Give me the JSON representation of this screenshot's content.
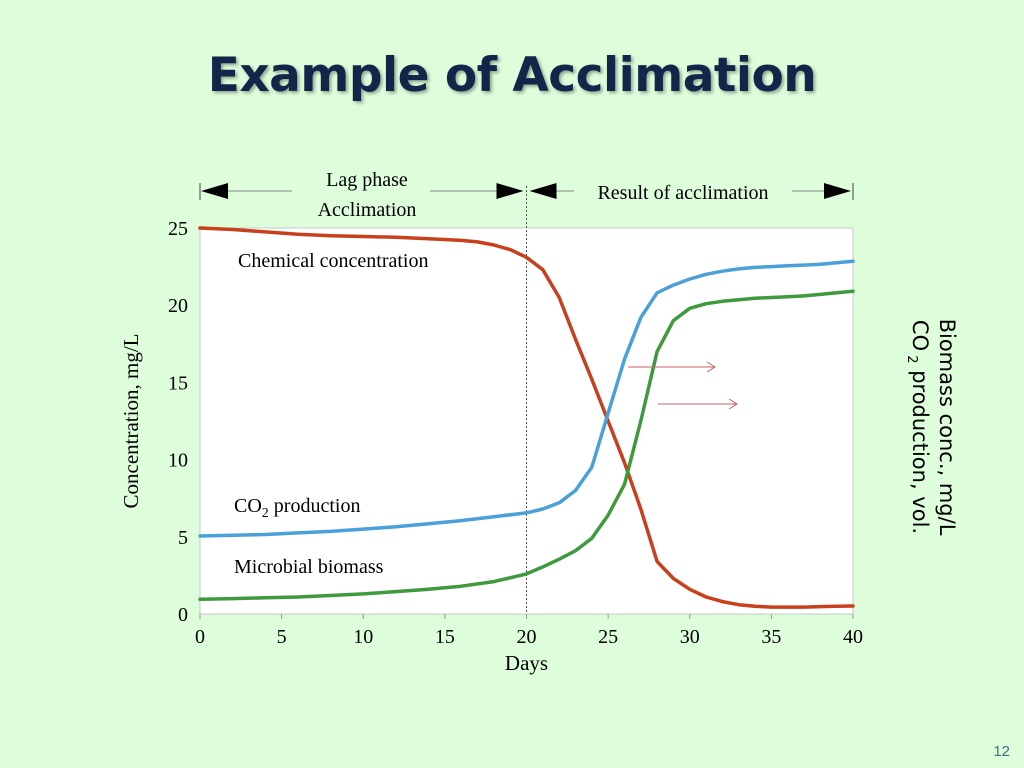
{
  "slide": {
    "title": "Example of Acclimation",
    "page_number": "12"
  },
  "colors": {
    "background": "#ddfddb",
    "title": "#14254a",
    "plot_area": "#ffffff",
    "chemical": "#c8401c",
    "co2": "#4aa0d8",
    "biomass": "#3e9a3c",
    "arrows": "#c8606a"
  },
  "chart_data": {
    "type": "line",
    "xlabel": "Days",
    "ylabel": "Concentration, mg/L",
    "y2label_line1": "Biomass conc., mg/L",
    "y2label_line2_pre": "CO",
    "y2label_line2_sub": "2",
    "y2label_line2_post": " production, vol.",
    "xlim": [
      0,
      40
    ],
    "ylim": [
      0,
      25
    ],
    "xticks": [
      0,
      5,
      10,
      15,
      20,
      25,
      30,
      35,
      40
    ],
    "yticks": [
      0,
      5,
      10,
      15,
      20,
      25
    ],
    "grid": false,
    "phase_divider_x": 20,
    "phases": {
      "lag_line1": "Lag phase",
      "lag_line2": "Acclimation",
      "result": "Result of acclimation"
    },
    "annotations": {
      "chemical": "Chemical concentration",
      "co2_pre": "CO",
      "co2_sub": "2",
      "co2_post": "production",
      "biomass": "Microbial biomass"
    },
    "series": [
      {
        "key": "chemical",
        "x": [
          0,
          2,
          4,
          6,
          8,
          10,
          12,
          14,
          16,
          17,
          18,
          19,
          20,
          21,
          22,
          23,
          24,
          25,
          26,
          27,
          28,
          29,
          30,
          31,
          32,
          33,
          34,
          35,
          36,
          37,
          38,
          39,
          40
        ],
        "values": [
          25.0,
          24.9,
          24.75,
          24.6,
          24.5,
          24.45,
          24.4,
          24.3,
          24.2,
          24.1,
          23.9,
          23.6,
          23.1,
          22.3,
          20.5,
          17.8,
          15.2,
          12.5,
          9.8,
          6.8,
          3.4,
          2.3,
          1.6,
          1.1,
          0.8,
          0.6,
          0.5,
          0.45,
          0.45,
          0.45,
          0.48,
          0.5,
          0.52
        ]
      },
      {
        "key": "co2",
        "x": [
          0,
          2,
          4,
          6,
          8,
          10,
          12,
          14,
          16,
          18,
          20,
          21,
          22,
          23,
          24,
          25,
          26,
          27,
          28,
          29,
          30,
          31,
          32,
          33,
          34,
          35,
          36,
          37,
          38,
          39,
          40
        ],
        "values": [
          5.05,
          5.1,
          5.15,
          5.25,
          5.35,
          5.5,
          5.65,
          5.85,
          6.05,
          6.3,
          6.55,
          6.8,
          7.2,
          8.0,
          9.5,
          13.0,
          16.5,
          19.2,
          20.8,
          21.3,
          21.7,
          22.0,
          22.2,
          22.35,
          22.45,
          22.5,
          22.55,
          22.6,
          22.65,
          22.75,
          22.85
        ]
      },
      {
        "key": "biomass",
        "x": [
          0,
          2,
          4,
          6,
          8,
          10,
          12,
          14,
          16,
          18,
          20,
          21,
          22,
          23,
          24,
          25,
          26,
          27,
          28,
          29,
          30,
          31,
          32,
          33,
          34,
          35,
          36,
          37,
          38,
          39,
          40
        ],
        "values": [
          0.95,
          1.0,
          1.05,
          1.1,
          1.2,
          1.3,
          1.45,
          1.6,
          1.8,
          2.1,
          2.6,
          3.05,
          3.55,
          4.1,
          4.9,
          6.4,
          8.4,
          12.5,
          17.0,
          19.0,
          19.8,
          20.1,
          20.25,
          20.35,
          20.45,
          20.5,
          20.55,
          20.6,
          20.7,
          20.8,
          20.9
        ]
      }
    ]
  }
}
